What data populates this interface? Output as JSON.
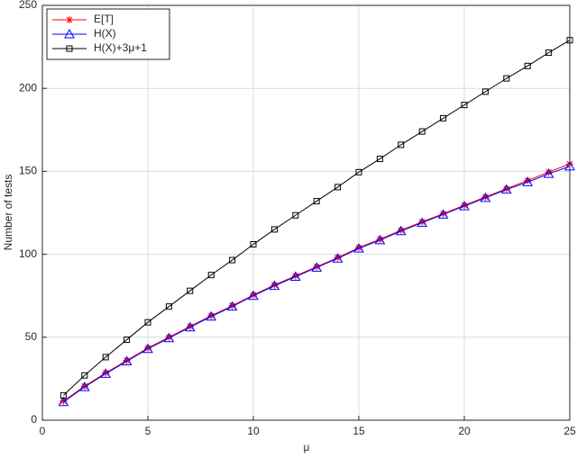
{
  "chart_data": {
    "type": "line",
    "xlabel": "μ",
    "ylabel": "Number of tests",
    "x": [
      1,
      2,
      3,
      4,
      5,
      6,
      7,
      8,
      9,
      10,
      11,
      12,
      13,
      14,
      15,
      16,
      17,
      18,
      19,
      20,
      21,
      22,
      23,
      24,
      25
    ],
    "xlim": [
      0,
      25
    ],
    "xticks": [
      0,
      5,
      10,
      15,
      20,
      25
    ],
    "ylim": [
      0,
      250
    ],
    "yticks": [
      0,
      50,
      100,
      150,
      200,
      250
    ],
    "grid": true,
    "legend": "upper-left",
    "series": [
      {
        "name": "E[T]",
        "color": "#ff0000",
        "marker": "asterisk",
        "values": [
          11.5,
          20.5,
          28.5,
          36,
          43.5,
          50,
          56.5,
          63,
          69,
          75.5,
          81.5,
          87,
          92.5,
          98,
          104,
          109,
          114.5,
          119.5,
          124.5,
          129.5,
          134.5,
          139.5,
          144.5,
          149.5,
          154.5
        ]
      },
      {
        "name": "H(X)",
        "color": "#0000ff",
        "marker": "triangle",
        "values": [
          11,
          20,
          28,
          35.5,
          43,
          49.5,
          56,
          62.5,
          68.5,
          75,
          81,
          86.5,
          92,
          97.5,
          103.5,
          108.5,
          114,
          119,
          124,
          129,
          134,
          139,
          143.5,
          148.5,
          153
        ]
      },
      {
        "name": "H(X)+3μ+1",
        "color": "#000000",
        "marker": "square",
        "values": [
          15,
          27,
          38,
          48.5,
          59,
          68.5,
          78,
          87.5,
          96.5,
          106,
          115,
          123.5,
          132,
          140.5,
          149.5,
          157.5,
          166,
          174,
          182,
          190,
          198,
          206,
          213.5,
          221.5,
          229
        ]
      }
    ]
  }
}
